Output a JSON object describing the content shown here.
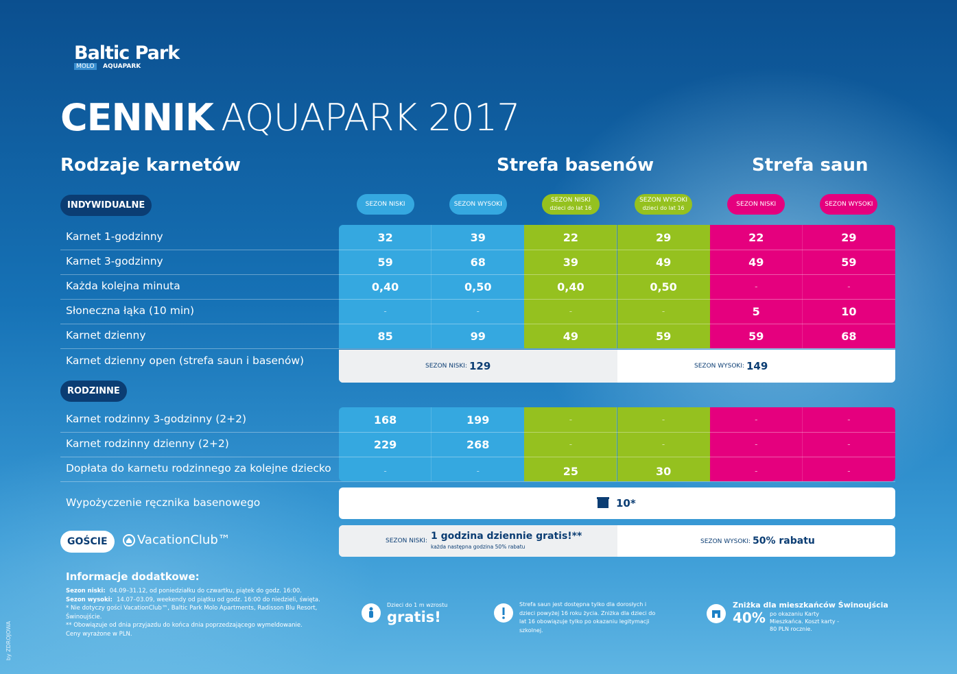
{
  "logo": {
    "brand": "Baltic Park",
    "sub1": "MOLO",
    "sub2": "AQUAPARK"
  },
  "title": {
    "bold": "CENNIK",
    "light": "AQUAPARK 2017"
  },
  "headings": {
    "types": "Rodzaje karnetów",
    "pools": "Strefa basenów",
    "saunas": "Strefa saun"
  },
  "columns": [
    {
      "label": "SEZON NISKI"
    },
    {
      "label": "SEZON WYSOKI"
    },
    {
      "label": "SEZON NISKI",
      "note": "dzieci do lat 16"
    },
    {
      "label": "SEZON WYSOKI",
      "note": "dzieci do lat 16"
    },
    {
      "label": "SEZON NISKI"
    },
    {
      "label": "SEZON WYSOKI"
    }
  ],
  "individual": {
    "badge": "INDYWIDUALNE",
    "rows": [
      {
        "label": "Karnet 1-godzinny",
        "values": [
          32,
          39,
          22,
          29,
          22,
          29
        ]
      },
      {
        "label": "Karnet 3-godzinny",
        "values": [
          59,
          68,
          39,
          49,
          49,
          59
        ]
      },
      {
        "label": "Każda kolejna minuta",
        "values": [
          "0,40",
          "0,50",
          "0,40",
          "0,50",
          "-",
          "-"
        ]
      },
      {
        "label": "Słoneczna łąka (10 min)",
        "values": [
          "-",
          "-",
          "-",
          "-",
          5,
          10
        ]
      },
      {
        "label": "Karnet dzienny",
        "values": [
          85,
          99,
          49,
          59,
          59,
          68
        ]
      }
    ],
    "open": {
      "label": "Karnet dzienny open (strefa saun i basenów)",
      "low_label": "SEZON NISKI:",
      "low_value": 129,
      "high_label": "SEZON WYSOKI:",
      "high_value": 149
    }
  },
  "family": {
    "badge": "RODZINNE",
    "rows": [
      {
        "label": "Karnet rodzinny 3-godzinny (2+2)",
        "values": [
          168,
          199,
          "-",
          "-",
          "-",
          "-"
        ]
      },
      {
        "label": "Karnet rodzinny dzienny (2+2)",
        "values": [
          229,
          268,
          "-",
          "-",
          "-",
          "-"
        ]
      },
      {
        "label": "Dopłata do karnetu rodzinnego za kolejne dziecko",
        "values": [
          "-",
          "-",
          25,
          30,
          "-",
          "-"
        ]
      }
    ]
  },
  "towel": {
    "label": "Wypożyczenie ręcznika basenowego",
    "value": "10*"
  },
  "guests": {
    "badge": "GOŚCIE",
    "club": "VacationClub™",
    "low_label": "SEZON NISKI:",
    "low_text": "1 godzina dziennie gratis!**",
    "low_note": "każda następna godzina 50% rabatu",
    "high_label": "SEZON WYSOKI:",
    "high_text": "50% rabatu"
  },
  "info": {
    "title": "Informacje dodatkowe:",
    "lines": [
      {
        "term": "Sezon niski:",
        "text": "04.09–31.12, od poniedziałku do czwartku, piątek do godz. 16:00."
      },
      {
        "term": "Sezon wysoki:",
        "text": "14.07–03.09, weekendy od piątku od godz. 16:00 do niedzieli, święta."
      },
      {
        "text": "*   Nie dotyczy gości VacationClub™, Baltic Park Molo Apartments, Radisson Blu Resort, Świnoujście."
      },
      {
        "text": "** Obowiązuje od dnia przyjazdu do końca dnia poprzedzającego wymeldowanie."
      },
      {
        "text": "Ceny wyrażone w PLN."
      }
    ]
  },
  "notes": {
    "kids": {
      "small": "Dzieci do 1 m wzrostu",
      "big": "gratis!"
    },
    "sauna": {
      "text": "Strefa saun jest dostępna tylko dla dorosłych i dzieci powyżej 16 roku życia. Zniżka dla dzieci do lat 16 obowiązuje tylko po okazaniu legitymacji szkolnej."
    },
    "residents": {
      "title": "Zniżka dla mieszkańców Świnoujścia",
      "big": "40%",
      "text": "po okazaniu Karty Mieszkańca. Koszt karty - 80 PLN rocznie."
    }
  },
  "credit": "by ZDROJOWA"
}
